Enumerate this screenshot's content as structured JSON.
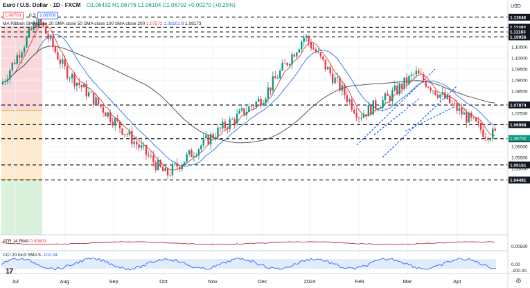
{
  "header": {
    "symbol": "Euro / U.S. Dollar · 1D · FXCM",
    "ohlc": "O1.06432 H1.06776 L1.06104 C1.06702 +0.00270 (+0.25%)",
    "sell_box": "1.06703",
    "spread": "0.3",
    "buy_box": "1.06706"
  },
  "legends": {
    "ma_prefix": "MA Ribbon SMA close 20 SMA close 50 SMA close 100 SMA close 200",
    "ma_v1": "1.07572",
    "ma_v2": "1.08101",
    "ma_v3": "0",
    "ma_v4": "1.08173",
    "atr_label": "ATR 14 RMA",
    "atr_value": "0.00603",
    "cci_label": "CCI 20 hlc3 SMA 5",
    "cci_value": "-101.04"
  },
  "axis": {
    "currency": "USD",
    "price_ticks": [
      "1.10500",
      "1.10000",
      "1.09500",
      "1.09000",
      "1.08500",
      "1.07500",
      "1.07000",
      "1.06000",
      "1.05500",
      "1.05000"
    ],
    "key_levels": [
      "1.11848",
      "1.11392",
      "1.11183",
      "1.10956",
      "1.07874",
      "1.06988",
      "1.06350",
      "1.05161",
      "1.04481"
    ],
    "last_price": "1.06702",
    "atr_ticks": [
      "0.00500"
    ],
    "cci_ticks": [
      "0.00",
      "-200.00"
    ],
    "months": [
      "Jul",
      "Aug",
      "Sep",
      "Oct",
      "Nov",
      "Dec",
      "2024",
      "Feb",
      "Mar",
      "Apr"
    ]
  },
  "chart_data": {
    "type": "candlestick",
    "title": "Euro / U.S. Dollar · 1D · FXCM",
    "ylabel": "USD",
    "ylim": [
      1.04,
      1.122
    ],
    "x": [
      "Jul 2023",
      "Aug 2023",
      "Sep 2023",
      "Oct 2023",
      "Nov 2023",
      "Dec 2023",
      "Jan 2024",
      "Feb 2024",
      "Mar 2024",
      "Apr 2024"
    ],
    "close_approx": [
      1.118,
      1.095,
      1.072,
      1.053,
      1.065,
      1.085,
      1.11,
      1.082,
      1.086,
      1.067
    ],
    "horizontal_levels": [
      1.11848,
      1.11392,
      1.11183,
      1.10956,
      1.07874,
      1.06988,
      1.0635,
      1.05161,
      1.04481
    ],
    "moving_averages": [
      "SMA 20",
      "SMA 50",
      "SMA 200"
    ],
    "indicators": [
      "ATR 14 RMA",
      "CCI 20 hlc3 SMA 5"
    ],
    "colors": {
      "up": "#089981",
      "down": "#f23645",
      "sma20": "#e34a4a",
      "sma50": "#3d7fe0",
      "sma200": "#555555",
      "level": "#000000",
      "channel": "#2962ff"
    }
  }
}
